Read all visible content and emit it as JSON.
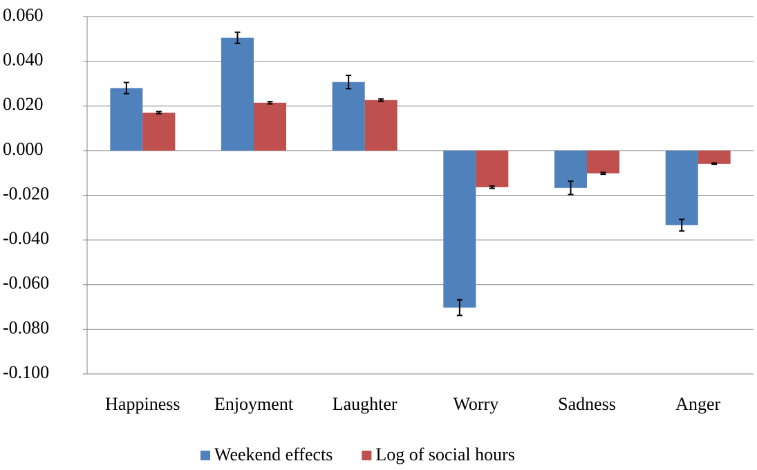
{
  "chart_data": {
    "type": "bar",
    "categories": [
      "Happiness",
      "Enjoyment",
      "Laughter",
      "Worry",
      "Sadness",
      "Anger"
    ],
    "series": [
      {
        "name": "Weekend effects",
        "color": "#4f81bd",
        "values": [
          0.028,
          0.0505,
          0.0307,
          -0.0703,
          -0.0167,
          -0.0334
        ],
        "errors": [
          0.0025,
          0.0025,
          0.003,
          0.0035,
          0.003,
          0.0026
        ]
      },
      {
        "name": "Log of social hours",
        "color": "#c0504d",
        "values": [
          0.017,
          0.0214,
          0.0226,
          -0.0164,
          -0.0102,
          -0.0059
        ],
        "errors": [
          0.0005,
          0.0005,
          0.0005,
          0.0005,
          0.0004,
          0.0003
        ]
      }
    ],
    "ylim": [
      -0.1,
      0.06
    ],
    "yticks": [
      {
        "value": 0.06,
        "label": "0.060"
      },
      {
        "value": 0.04,
        "label": "0.040"
      },
      {
        "value": 0.02,
        "label": "0.020"
      },
      {
        "value": 0,
        "label": "0.000"
      },
      {
        "value": -0.02,
        "label": "-0.020"
      },
      {
        "value": -0.04,
        "label": "-0.040"
      },
      {
        "value": -0.06,
        "label": "-0.060"
      },
      {
        "value": -0.08,
        "label": "-0.080"
      },
      {
        "value": -0.1,
        "label": "-0.100"
      }
    ],
    "grid": true,
    "legend": "bottom"
  }
}
